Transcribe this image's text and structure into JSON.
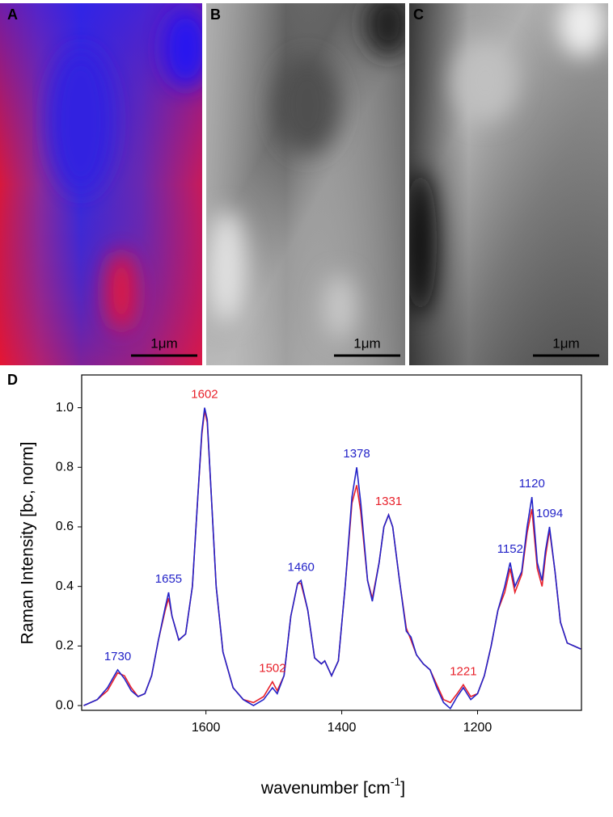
{
  "panels": [
    {
      "label": "A",
      "scale_bar": "1μm"
    },
    {
      "label": "B",
      "scale_bar": "1μm"
    },
    {
      "label": "C",
      "scale_bar": "1μm"
    }
  ],
  "chart_data": {
    "type": "line",
    "panel_label": "D",
    "x_label": {
      "text": "wavenumber [cm",
      "superscript": "-1",
      "suffix": "]"
    },
    "y_label": "Raman Intensity [bc, norm]",
    "x": [
      1780,
      1760,
      1745,
      1735,
      1730,
      1720,
      1710,
      1700,
      1690,
      1680,
      1670,
      1660,
      1655,
      1650,
      1640,
      1630,
      1620,
      1612,
      1606,
      1602,
      1598,
      1592,
      1585,
      1575,
      1560,
      1545,
      1530,
      1515,
      1502,
      1495,
      1485,
      1475,
      1465,
      1460,
      1450,
      1440,
      1430,
      1425,
      1415,
      1405,
      1395,
      1385,
      1378,
      1372,
      1362,
      1355,
      1345,
      1338,
      1331,
      1325,
      1315,
      1305,
      1298,
      1290,
      1280,
      1270,
      1260,
      1250,
      1240,
      1230,
      1221,
      1210,
      1200,
      1190,
      1180,
      1170,
      1160,
      1152,
      1145,
      1135,
      1127,
      1120,
      1112,
      1105,
      1100,
      1094,
      1086,
      1078,
      1068,
      1058,
      1048
    ],
    "series": [
      {
        "color": "#e8202a",
        "values": [
          0.0,
          0.02,
          0.05,
          0.09,
          0.11,
          0.1,
          0.06,
          0.03,
          0.04,
          0.1,
          0.22,
          0.32,
          0.36,
          0.3,
          0.22,
          0.24,
          0.4,
          0.7,
          0.91,
          0.99,
          0.95,
          0.7,
          0.4,
          0.18,
          0.06,
          0.02,
          0.01,
          0.03,
          0.08,
          0.05,
          0.1,
          0.3,
          0.41,
          0.41,
          0.32,
          0.16,
          0.14,
          0.15,
          0.1,
          0.15,
          0.4,
          0.68,
          0.74,
          0.65,
          0.42,
          0.36,
          0.48,
          0.6,
          0.64,
          0.6,
          0.42,
          0.26,
          0.22,
          0.17,
          0.14,
          0.12,
          0.07,
          0.02,
          0.01,
          0.04,
          0.07,
          0.03,
          0.04,
          0.1,
          0.2,
          0.32,
          0.38,
          0.46,
          0.38,
          0.44,
          0.58,
          0.66,
          0.46,
          0.4,
          0.5,
          0.59,
          0.45,
          0.28,
          0.21,
          0.2,
          0.19
        ]
      },
      {
        "color": "#2323c8",
        "values": [
          0.0,
          0.02,
          0.06,
          0.1,
          0.12,
          0.09,
          0.05,
          0.03,
          0.04,
          0.1,
          0.22,
          0.33,
          0.38,
          0.3,
          0.22,
          0.24,
          0.4,
          0.7,
          0.92,
          1.0,
          0.96,
          0.7,
          0.4,
          0.18,
          0.06,
          0.02,
          0.0,
          0.02,
          0.06,
          0.04,
          0.1,
          0.3,
          0.41,
          0.42,
          0.32,
          0.16,
          0.14,
          0.15,
          0.1,
          0.15,
          0.4,
          0.7,
          0.8,
          0.68,
          0.42,
          0.35,
          0.48,
          0.6,
          0.64,
          0.6,
          0.42,
          0.25,
          0.23,
          0.17,
          0.14,
          0.12,
          0.06,
          0.01,
          -0.01,
          0.03,
          0.06,
          0.02,
          0.04,
          0.1,
          0.2,
          0.32,
          0.4,
          0.48,
          0.4,
          0.45,
          0.6,
          0.7,
          0.48,
          0.42,
          0.52,
          0.6,
          0.45,
          0.28,
          0.21,
          0.2,
          0.19
        ]
      }
    ],
    "peak_labels": [
      {
        "value": 1730,
        "label": "1730",
        "color": "#2323c8"
      },
      {
        "value": 1655,
        "label": "1655",
        "color": "#2323c8"
      },
      {
        "value": 1602,
        "label": "1602",
        "color": "#e8202a"
      },
      {
        "value": 1502,
        "label": "1502",
        "color": "#e8202a"
      },
      {
        "value": 1460,
        "label": "1460",
        "color": "#2323c8"
      },
      {
        "value": 1378,
        "label": "1378",
        "color": "#2323c8"
      },
      {
        "value": 1331,
        "label": "1331",
        "color": "#e8202a"
      },
      {
        "value": 1221,
        "label": "1221",
        "color": "#e8202a"
      },
      {
        "value": 1152,
        "label": "1152",
        "color": "#2323c8"
      },
      {
        "value": 1120,
        "label": "1120",
        "color": "#2323c8"
      },
      {
        "value": 1094,
        "label": "1094",
        "color": "#2323c8"
      }
    ],
    "xlim": [
      1783,
      1047
    ],
    "xticks": [
      1600,
      1400,
      1200
    ],
    "ylim": [
      -0.016,
      1.11
    ],
    "yticks": [
      {
        "value": 0,
        "label": "0.0"
      },
      0.2,
      0.4,
      0.6,
      0.8,
      {
        "value": 1,
        "label": "1.0"
      }
    ]
  }
}
